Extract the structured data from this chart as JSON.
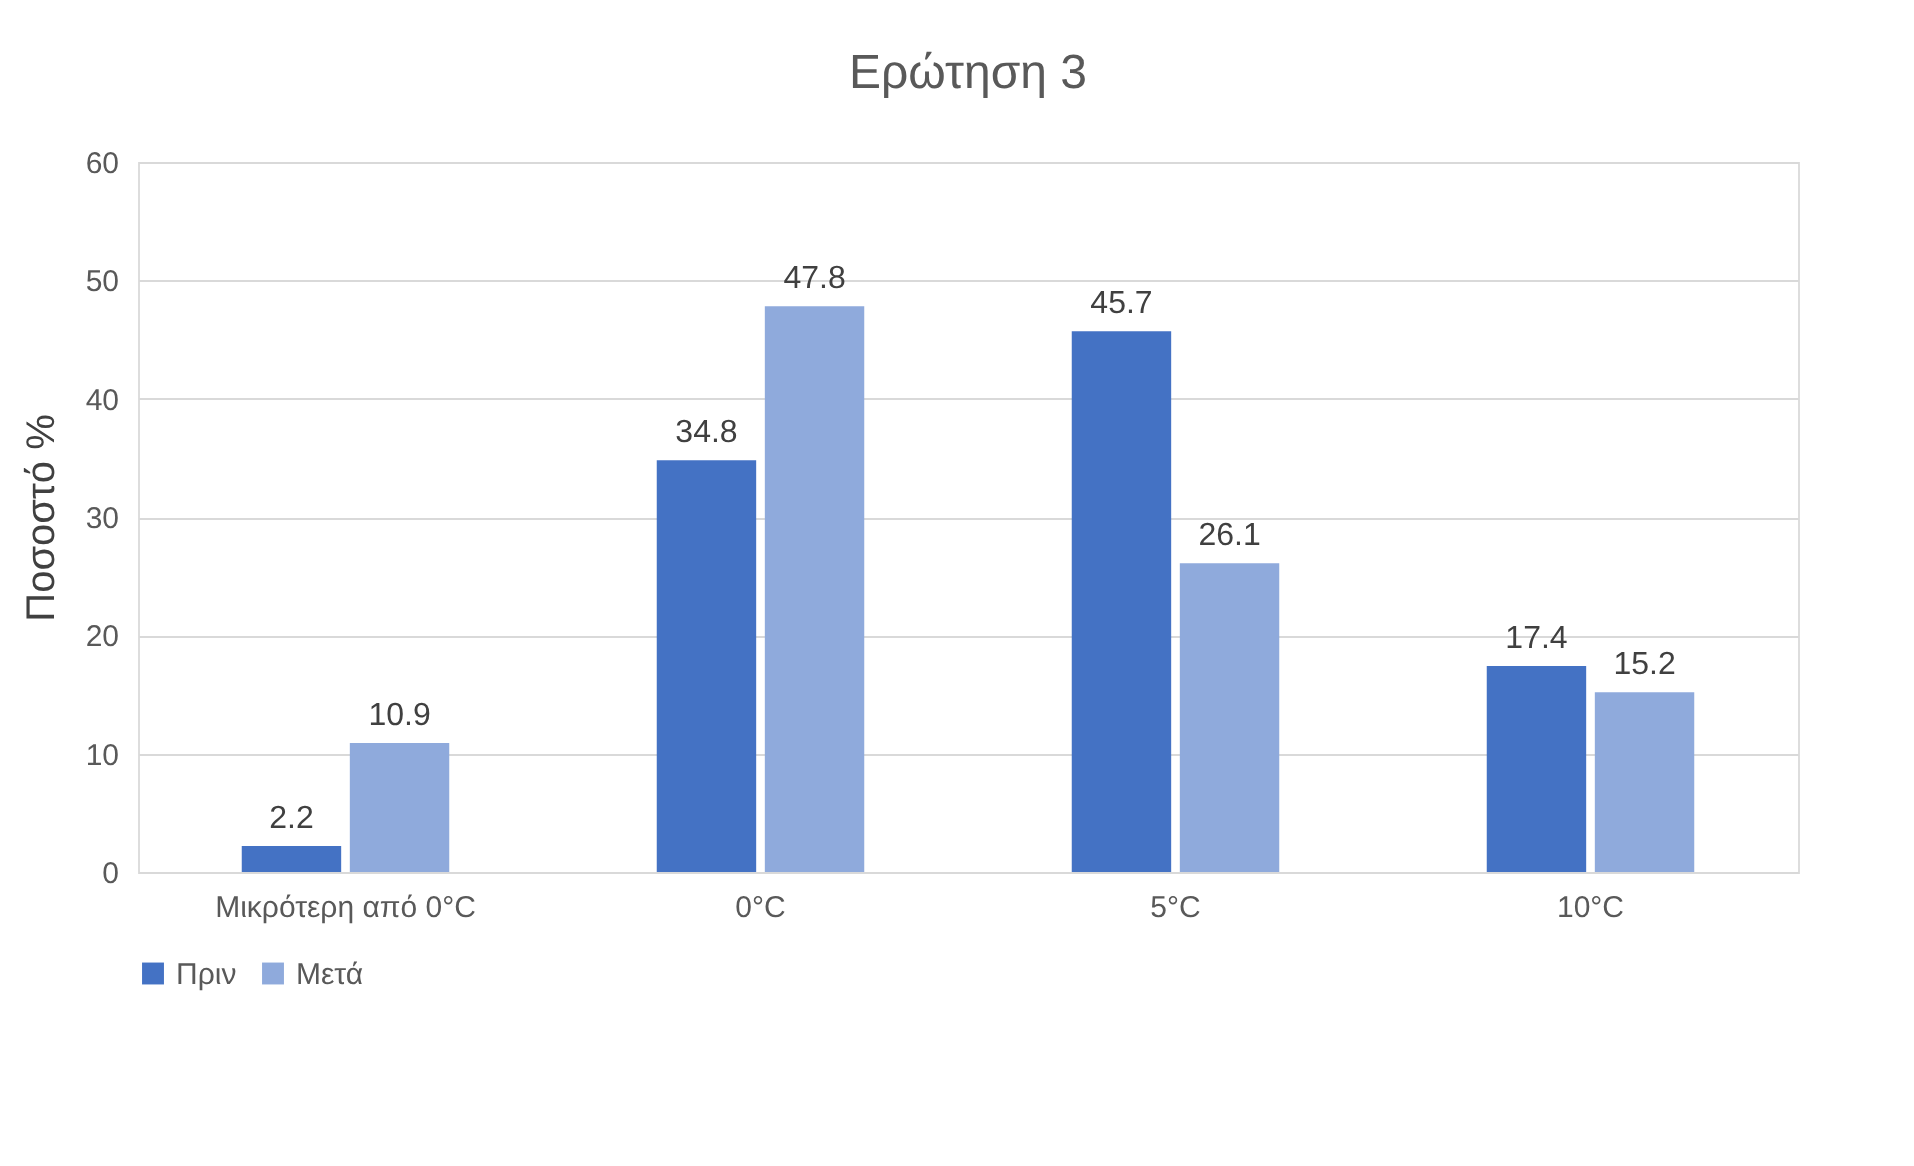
{
  "chart_data": {
    "type": "bar",
    "title": "Ερώτηση 3",
    "ylabel": "Ποσοστό %",
    "categories": [
      "Μικρότερη από 0°C",
      "0°C",
      "5°C",
      "10°C"
    ],
    "series": [
      {
        "name": "Πριν",
        "color": "#4472c4",
        "values": [
          2.2,
          34.8,
          45.7,
          17.4
        ]
      },
      {
        "name": "Μετά",
        "color": "#8faadc",
        "values": [
          10.9,
          47.8,
          26.1,
          15.2
        ]
      }
    ],
    "ylim": [
      0,
      60
    ],
    "yticks": [
      0,
      10,
      20,
      30,
      40,
      50,
      60
    ],
    "grid": "y",
    "legend": "bottom",
    "data_labels": true
  }
}
